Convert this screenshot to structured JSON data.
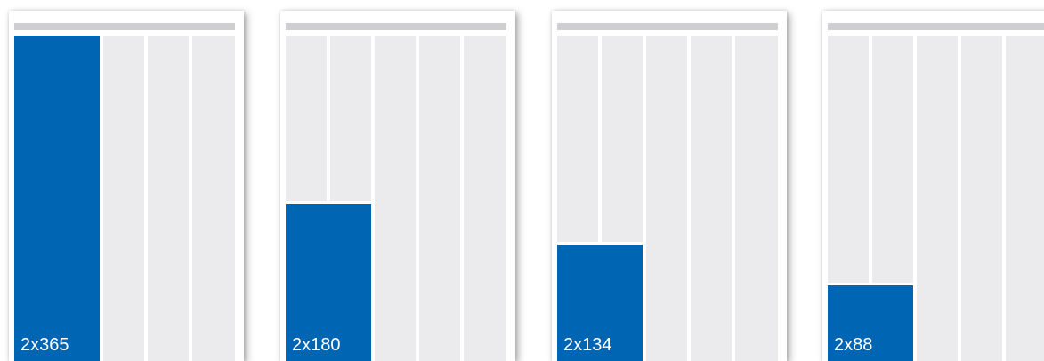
{
  "cards": [
    {
      "label": "2x365",
      "fill_fraction": 1.0
    },
    {
      "label": "2x180",
      "fill_fraction": 0.4932
    },
    {
      "label": "2x134",
      "fill_fraction": 0.3671
    },
    {
      "label": "2x88",
      "fill_fraction": 0.2411
    }
  ],
  "colors": {
    "accent": "#0066b3",
    "column": "#ebebed",
    "topbar": "#cfcfd1"
  }
}
